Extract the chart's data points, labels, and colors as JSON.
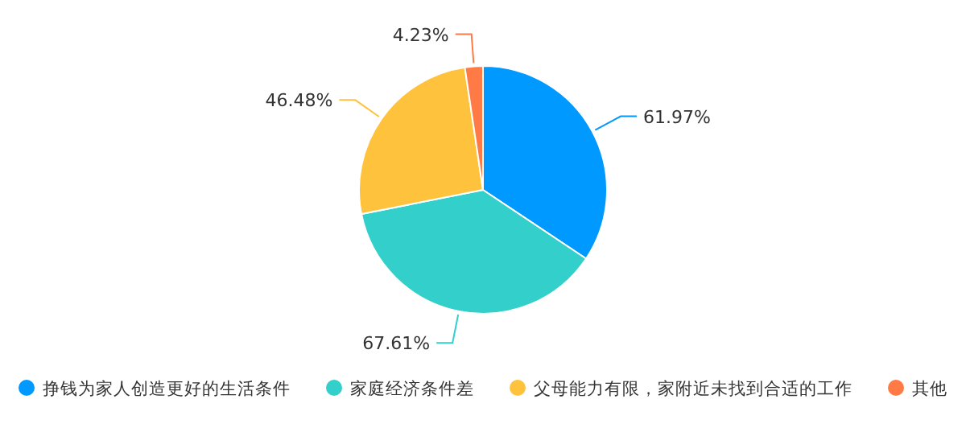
{
  "chart_data": {
    "type": "pie",
    "categories": [
      "挣钱为家人创造更好的生活条件",
      "家庭经济条件差",
      "父母能力有限，家附近未找到合适的工作",
      "其他"
    ],
    "values": [
      61.97,
      67.61,
      46.48,
      4.23
    ],
    "value_labels": [
      "61.97%",
      "67.61%",
      "46.48%",
      "4.23%"
    ],
    "colors": [
      "#0099ff",
      "#33cfca",
      "#ffc23d",
      "#ff7a45"
    ],
    "legend": "bottom"
  }
}
